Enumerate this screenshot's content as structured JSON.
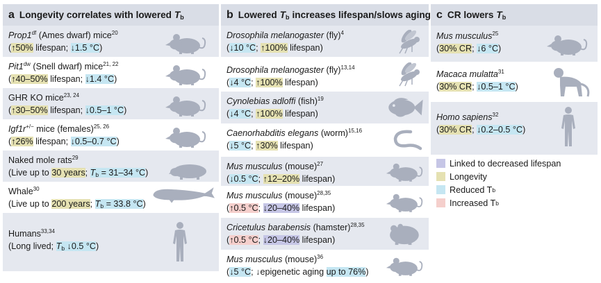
{
  "colors": {
    "panel_header": "#d9dde6",
    "row_shade": "#e5e8ef",
    "silhouette": "#a9afbd",
    "decreased_lifespan": "#c6c6e6",
    "longevity": "#e5e1b2",
    "reduced_tb": "#c5e6f2",
    "increased_tb": "#f5cfcc"
  },
  "panel_a": {
    "letter": "a",
    "title": "Longevity correlates with lowered",
    "tb": "T",
    "tb_sub": "b",
    "rows": [
      {
        "name_italic": "Prop1",
        "name_sup": "df",
        "name_rest": " (Ames dwarf) mice",
        "ref": "20",
        "effect1": "↑50%",
        "sep": " lifespan; ",
        "effect2": "↓1.5 °C",
        "icon": "mouse-icon"
      },
      {
        "name_italic": "Pit1",
        "name_sup": "dw",
        "name_rest": " (Snell dwarf) mice",
        "ref": "21, 22",
        "effect1": "↑40–50%",
        "sep": " lifespan; ",
        "effect2": "↓1.4 °C",
        "icon": "mouse-icon"
      },
      {
        "name_plain": "GHR KO mice",
        "ref": "23, 24",
        "effect1": "↑30–50%",
        "sep": " lifespan; ",
        "effect2": "↓0.5–1 °C",
        "icon": "mouse-icon"
      },
      {
        "name_italic": "Igf1r",
        "name_sup": "+/−",
        "name_rest": " mice (females)",
        "ref": "25, 26",
        "effect1": "↑26%",
        "sep": " lifespan; ",
        "effect2": "↓0.5–0.7 °C",
        "icon": "mouse-icon"
      },
      {
        "name_plain": "Naked mole rats",
        "ref": "29",
        "line2_pre": "Live up to ",
        "line2_hl": "30 years",
        "line2_sep": "; ",
        "line2_tb_val": " = 31–34 °C",
        "icon": "mole-rat-icon"
      },
      {
        "name_plain": "Whale",
        "ref": "30",
        "line2_pre": "Live up to ",
        "line2_hl": "200 years",
        "line2_sep": "; ",
        "line2_tb_val": " = 33.8 °C",
        "icon": "whale-icon"
      },
      {
        "name_plain": "Humans",
        "ref": "33,34",
        "line2_pre": "Long lived; ",
        "line2_tb_val": " ↓0.5 °C",
        "icon": "human-icon"
      }
    ]
  },
  "panel_b": {
    "letter": "b",
    "title_pre": "Lowered",
    "tb": "T",
    "tb_sub": "b",
    "title_post": "increases lifespan/slows aging",
    "rows": [
      {
        "name_italic": "Drosophila melanogaster",
        "name_rest": " (fly)",
        "ref": "4",
        "effect1": "↓10 °C",
        "sep": "; ",
        "effect2": "↑100%",
        "tail": " lifespan",
        "icon": "fly-icon"
      },
      {
        "name_italic": "Drosophila melanogaster",
        "name_rest": " (fly)",
        "ref": "13,14",
        "effect1": "↓4 °C",
        "sep": "; ",
        "effect2": "↑100%",
        "tail": " lifespan",
        "icon": "fly-icon"
      },
      {
        "name_italic": "Cynolebias adloffi",
        "name_rest": " (fish)",
        "ref": "19",
        "effect1": "↓4 °C",
        "sep": "; ",
        "effect2": "↑100%",
        "tail": " lifespan",
        "icon": "fish-icon"
      },
      {
        "name_italic": "Caenorhabditis elegans",
        "name_rest": " (worm)",
        "ref": "15,16",
        "effect1": "↓5 °C",
        "sep": "; ",
        "effect2": "↑30%",
        "tail": " lifespan",
        "icon": "worm-icon"
      },
      {
        "name_italic": "Mus musculus",
        "name_rest": " (mouse)",
        "ref": "27",
        "effect1": "↓0.5 °C",
        "sep": "; ",
        "effect2": "↑12–20%",
        "tail": " lifespan",
        "icon": "mouse-icon"
      },
      {
        "name_italic": "Mus musculus",
        "name_rest": " (mouse)",
        "ref": "28,35",
        "effect1": "↑0.5 °C",
        "sep": "; ",
        "effect2": "↓20–40%",
        "tail": " lifespan",
        "icon": "mouse-icon"
      },
      {
        "name_italic": "Cricetulus barabensis",
        "name_rest": " (hamster)",
        "ref": "28,35",
        "effect1": "↑0.5 °C",
        "sep": "; ",
        "effect2": "↓20–40%",
        "tail": " lifespan",
        "icon": "hamster-icon"
      },
      {
        "name_italic": "Mus musculus",
        "name_rest": " (mouse)",
        "ref": "36",
        "effect1": "↓5 °C",
        "sep": "; ",
        "effect2_plain": "↓epigenetic aging ",
        "effect2": "up to 76%",
        "icon": "mouse-icon"
      }
    ]
  },
  "panel_c": {
    "letter": "c",
    "title": "CR lowers",
    "tb": "T",
    "tb_sub": "b",
    "rows": [
      {
        "name_italic": "Mus musculus",
        "ref": "25",
        "effect1": "30% CR",
        "sep": "; ",
        "effect2": "↓6 °C",
        "icon": "mouse-icon"
      },
      {
        "name_italic": "Macaca mulatta",
        "ref": "31",
        "effect1": "30% CR",
        "sep": "; ",
        "effect2": "↓0.5–1 °C",
        "icon": "monkey-icon"
      },
      {
        "name_italic": "Homo sapiens",
        "ref": "32",
        "effect1": "30% CR",
        "sep": "; ",
        "effect2": "↓0.2–0.5 °C",
        "icon": "human-icon"
      }
    ]
  },
  "legend": [
    {
      "label": "Linked to decreased lifespan",
      "color": "#c6c6e6"
    },
    {
      "label": "Longevity",
      "color": "#e5e1b2"
    },
    {
      "label": "Reduced T",
      "sub": "b",
      "color": "#c5e6f2"
    },
    {
      "label": "Increased T",
      "sub": "b",
      "color": "#f5cfcc"
    }
  ]
}
